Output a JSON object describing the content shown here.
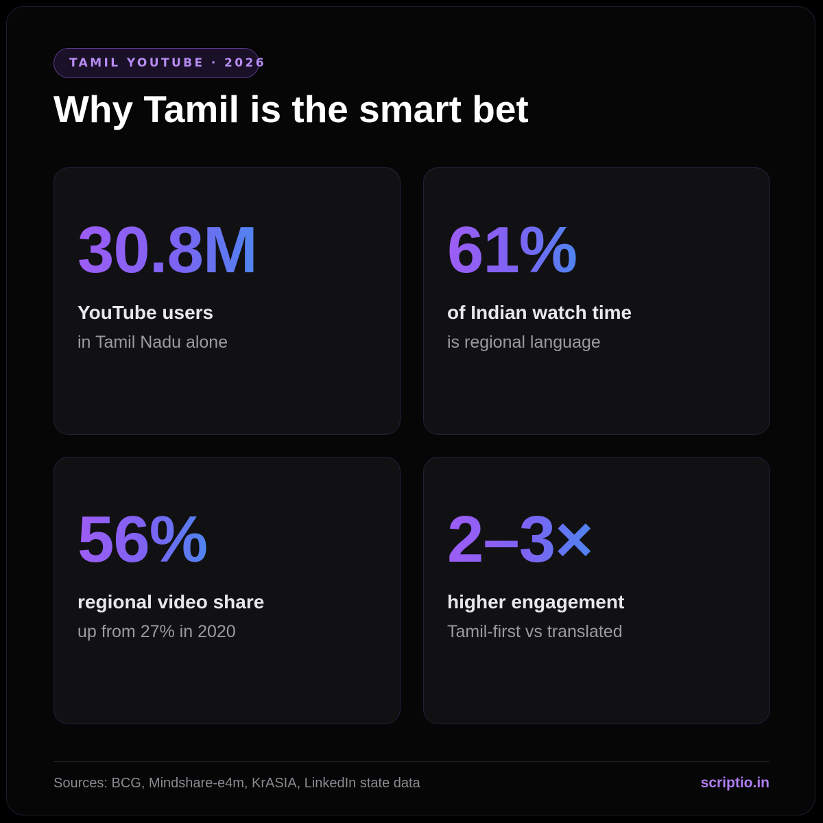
{
  "header": {
    "tag": "TAMIL YOUTUBE · 2026",
    "title": "Why Tamil is the smart bet"
  },
  "stats": [
    {
      "value": "30.8M",
      "label": "YouTube users",
      "sub": "in Tamil Nadu alone"
    },
    {
      "value": "61%",
      "label": "of Indian watch time",
      "sub": "is regional language"
    },
    {
      "value": "56%",
      "label": "regional video share",
      "sub": "up from 27% in 2020"
    },
    {
      "value": "2–3×",
      "label": "higher engagement",
      "sub": "Tamil-first vs translated"
    }
  ],
  "footer": {
    "sources": "Sources: BCG, Mindshare-e4m, KrASIA, LinkedIn state data",
    "brand": "scriptio.in"
  },
  "colors": {
    "accent_purple": "#9d5df5",
    "accent_blue": "#4f84f0",
    "tag_text": "#b78cf2",
    "brand": "#b07df2"
  }
}
